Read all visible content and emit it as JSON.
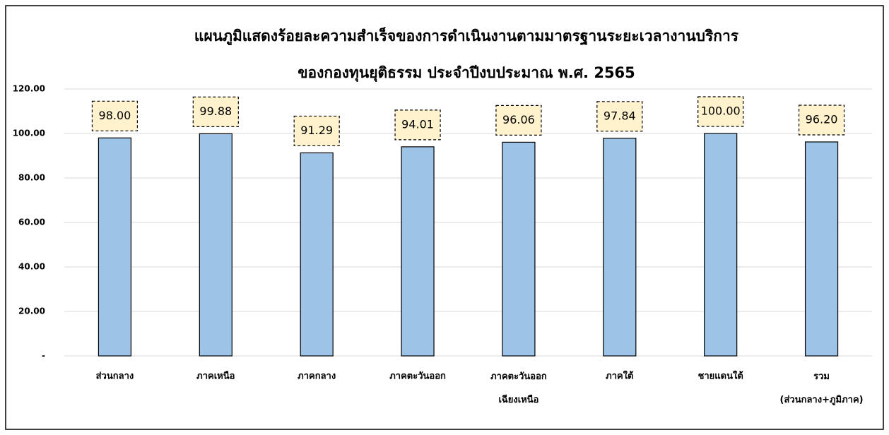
{
  "chart_data": {
    "type": "bar",
    "title": "แผนภูมิแสดงร้อยละความสำเร็จของการดำเนินงานตามมาตรฐานระยะเวลางานบริการ\nของกองทุนยุติธรรม ประจำปีงบประมาณ พ.ศ. 2565",
    "categories": [
      "ส่วนกลาง",
      "ภาคเหนือ",
      "ภาคกลาง",
      "ภาคตะวันออก",
      "ภาคตะวันออก\nเฉียงเหนือ",
      "ภาคใต้",
      "ชายแดนใต้",
      "รวม\n(ส่วนกลาง+ภูมิภาค)"
    ],
    "values": [
      98,
      99.88,
      91.29,
      94.01,
      96.06,
      97.84,
      100,
      96.2
    ],
    "value_labels": [
      "98.00",
      "99.88",
      "91.29",
      "94.01",
      "96.06",
      "97.84",
      "100.00",
      "96.20"
    ],
    "color": "#9dc3e6",
    "ylim": [
      0,
      120
    ],
    "yticks": [
      {
        "value": 0,
        "label": "-"
      },
      {
        "value": 20,
        "label": "20.00"
      },
      {
        "value": 40,
        "label": "40.00"
      },
      {
        "value": 60,
        "label": "60.00"
      },
      {
        "value": 80,
        "label": "80.00"
      },
      {
        "value": 100,
        "label": "100.00"
      },
      {
        "value": 120,
        "label": "120.00"
      }
    ],
    "grid": true
  }
}
